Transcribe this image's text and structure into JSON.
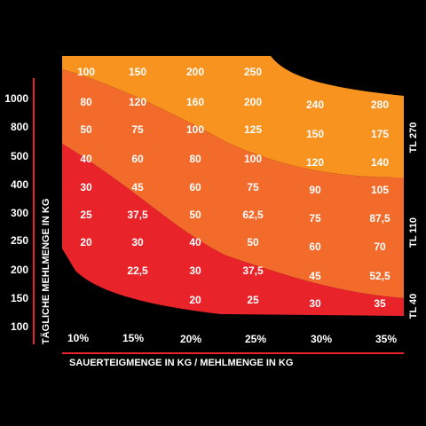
{
  "colors": {
    "background": "#000000",
    "zone_tl270": "#f7931e",
    "zone_tl110": "#f26b2a",
    "zone_tl40": "#e8232a",
    "axis_line": "#e8232a",
    "text": "#ffffff"
  },
  "chart_data": {
    "type": "heatmap",
    "xlabel": "SAUERTEIGMENGE IN KG / MEHLMENGE IN KG",
    "ylabel": "TÄGLICHE MEHLMENGE IN KG",
    "x_ticks": [
      "10%",
      "15%",
      "20%",
      "25%",
      "30%",
      "35%"
    ],
    "y_ticks": [
      "1000",
      "800",
      "500",
      "400",
      "300",
      "250",
      "200",
      "150",
      "100"
    ],
    "zones": [
      "TL 270",
      "TL 110",
      "TL 40"
    ],
    "columns": [
      {
        "x": "10%",
        "values": [
          "100",
          "80",
          "50",
          "40",
          "30",
          "25",
          "20"
        ]
      },
      {
        "x": "15%",
        "values": [
          "150",
          "120",
          "75",
          "60",
          "45",
          "37,5",
          "30",
          "22,5"
        ]
      },
      {
        "x": "20%",
        "values": [
          "200",
          "160",
          "100",
          "80",
          "60",
          "50",
          "40",
          "30",
          "20"
        ]
      },
      {
        "x": "25%",
        "values": [
          "250",
          "200",
          "125",
          "100",
          "75",
          "62,5",
          "50",
          "37,5",
          "25"
        ]
      },
      {
        "x": "30%",
        "values": [
          "240",
          "150",
          "120",
          "90",
          "75",
          "60",
          "45",
          "30"
        ]
      },
      {
        "x": "35%",
        "values": [
          "280",
          "175",
          "140",
          "105",
          "87,5",
          "70",
          "52,5",
          "35"
        ]
      }
    ]
  }
}
